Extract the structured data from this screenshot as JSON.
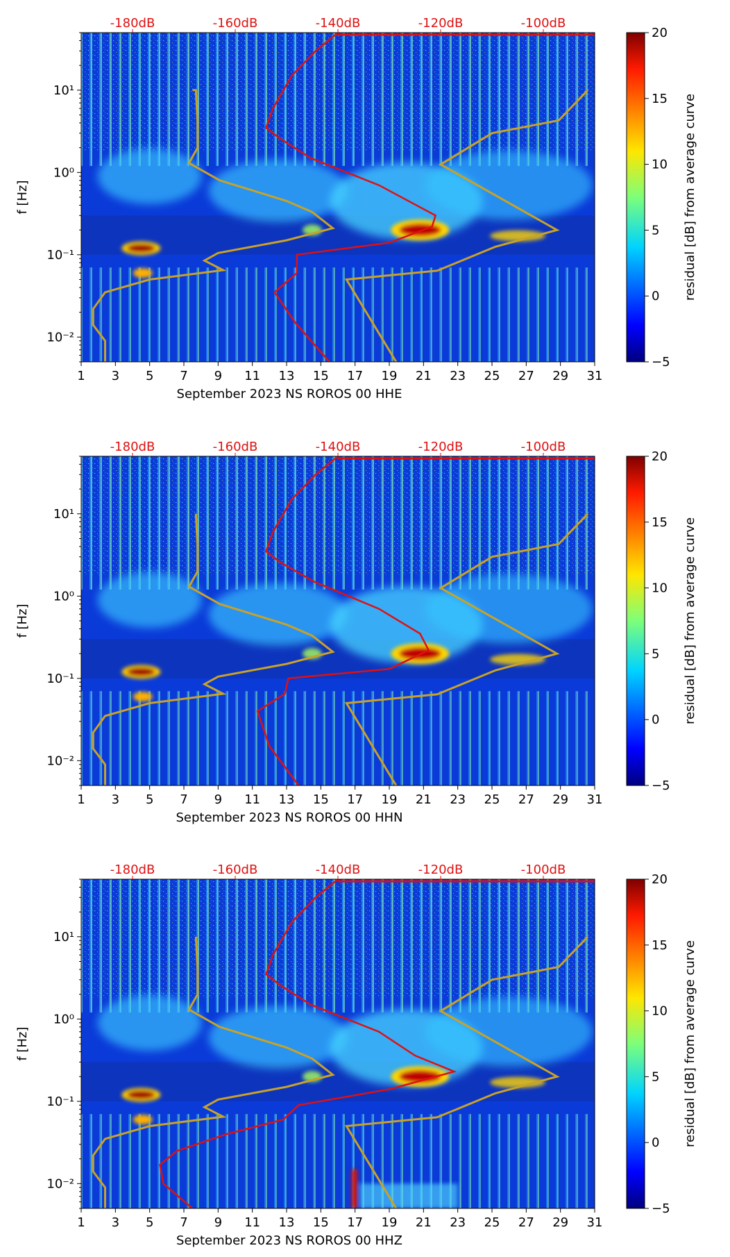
{
  "figure": {
    "colorbar_ticks": [
      "20",
      "15",
      "10",
      "5",
      "0",
      "−5"
    ],
    "colorbar_label": "residual [dB] from average curve",
    "colors": {
      "noise_model": "#c9a227",
      "median_psd": "#e01010",
      "top_axis_text": "#e01010"
    }
  },
  "chart_data": [
    {
      "type": "heatmap",
      "title": "",
      "xlabel": "September 2023 NS ROROS 00 HHE",
      "ylabel": "f [Hz]",
      "x_ticks": [
        "1",
        "3",
        "5",
        "7",
        "9",
        "11",
        "13",
        "15",
        "17",
        "19",
        "21",
        "23",
        "25",
        "27",
        "29",
        "31"
      ],
      "y_ticks": [
        "10¹",
        "10⁰",
        "10⁻¹",
        "10⁻²"
      ],
      "top_ticks": [
        "-180dB",
        "-160dB",
        "-140dB",
        "-120dB",
        "-100dB"
      ],
      "xlim": [
        1,
        31
      ],
      "ylim_hz": [
        0.005,
        50
      ],
      "top_range_db": [
        -190,
        -90
      ],
      "colorbar": {
        "min": -5,
        "max": 20,
        "label": "residual [dB] from average curve"
      },
      "noise_model_curve": [
        [
          2.4,
          0.005
        ],
        [
          2.4,
          0.009
        ],
        [
          1.7,
          0.014
        ],
        [
          1.7,
          0.022
        ],
        [
          2.4,
          0.035
        ],
        [
          5,
          0.05
        ],
        [
          9.3,
          0.065
        ],
        [
          8.2,
          0.085
        ],
        [
          9,
          0.105
        ],
        [
          13,
          0.15
        ],
        [
          15.7,
          0.21
        ],
        [
          14.5,
          0.33
        ],
        [
          13,
          0.45
        ],
        [
          9.1,
          0.8
        ],
        [
          7.3,
          1.3
        ],
        [
          7.8,
          2
        ],
        [
          7.8,
          4
        ],
        [
          7.7,
          10
        ],
        [
          7.7,
          10
        ],
        [
          7.6,
          10
        ],
        [
          7.6,
          10
        ],
        [
          7.6,
          10
        ],
        [
          7.5,
          10
        ],
        [
          7.5,
          10
        ]
      ],
      "noise_model_curve_right": [
        [
          19.4,
          0.005
        ],
        [
          16.5,
          0.05
        ],
        [
          21.8,
          0.064
        ],
        [
          25.2,
          0.125
        ],
        [
          28.8,
          0.2
        ],
        [
          22,
          1.25
        ],
        [
          25,
          3
        ],
        [
          28.9,
          4.3
        ],
        [
          30.6,
          10
        ]
      ],
      "median_psd_curve": [
        [
          15.5,
          0.005
        ],
        [
          13.5,
          0.015
        ],
        [
          12.3,
          0.035
        ],
        [
          13.6,
          0.06
        ],
        [
          13.6,
          0.1
        ],
        [
          19,
          0.14
        ],
        [
          21.5,
          0.22
        ],
        [
          21.7,
          0.3
        ],
        [
          18.4,
          0.7
        ],
        [
          14.4,
          1.5
        ],
        [
          12.6,
          2.6
        ],
        [
          11.8,
          3.5
        ],
        [
          12.2,
          6
        ],
        [
          13.3,
          15
        ],
        [
          14.7,
          30
        ],
        [
          16,
          50
        ]
      ]
    },
    {
      "type": "heatmap",
      "title": "",
      "xlabel": "September 2023 NS ROROS 00 HHN",
      "ylabel": "f [Hz]",
      "x_ticks": [
        "1",
        "3",
        "5",
        "7",
        "9",
        "11",
        "13",
        "15",
        "17",
        "19",
        "21",
        "23",
        "25",
        "27",
        "29",
        "31"
      ],
      "y_ticks": [
        "10¹",
        "10⁰",
        "10⁻¹",
        "10⁻²"
      ],
      "top_ticks": [
        "-180dB",
        "-160dB",
        "-140dB",
        "-120dB",
        "-100dB"
      ],
      "xlim": [
        1,
        31
      ],
      "ylim_hz": [
        0.005,
        50
      ],
      "top_range_db": [
        -190,
        -90
      ],
      "colorbar": {
        "min": -5,
        "max": 20,
        "label": "residual [dB] from average curve"
      },
      "noise_model_curve": [
        [
          2.4,
          0.005
        ],
        [
          2.4,
          0.009
        ],
        [
          1.7,
          0.014
        ],
        [
          1.7,
          0.022
        ],
        [
          2.4,
          0.035
        ],
        [
          5,
          0.05
        ],
        [
          9.3,
          0.065
        ],
        [
          8.2,
          0.085
        ],
        [
          9,
          0.105
        ],
        [
          13,
          0.15
        ],
        [
          15.7,
          0.21
        ],
        [
          14.5,
          0.33
        ],
        [
          13,
          0.45
        ],
        [
          9.1,
          0.8
        ],
        [
          7.3,
          1.3
        ],
        [
          7.8,
          2
        ],
        [
          7.8,
          4
        ],
        [
          7.7,
          10
        ]
      ],
      "noise_model_curve_right": [
        [
          19.4,
          0.005
        ],
        [
          16.5,
          0.05
        ],
        [
          21.8,
          0.064
        ],
        [
          25.2,
          0.125
        ],
        [
          28.8,
          0.2
        ],
        [
          22,
          1.25
        ],
        [
          25,
          3
        ],
        [
          28.9,
          4.3
        ],
        [
          30.6,
          10
        ]
      ],
      "median_psd_curve": [
        [
          13.7,
          0.005
        ],
        [
          12,
          0.015
        ],
        [
          11.3,
          0.04
        ],
        [
          12.9,
          0.065
        ],
        [
          13.1,
          0.1
        ],
        [
          19,
          0.13
        ],
        [
          21.3,
          0.22
        ],
        [
          20.8,
          0.35
        ],
        [
          18.4,
          0.7
        ],
        [
          14.6,
          1.5
        ],
        [
          12.6,
          2.6
        ],
        [
          11.8,
          3.5
        ],
        [
          12.2,
          6
        ],
        [
          13.3,
          15
        ],
        [
          14.7,
          30
        ],
        [
          16,
          50
        ]
      ]
    },
    {
      "type": "heatmap",
      "title": "",
      "xlabel": "September 2023 NS ROROS 00 HHZ",
      "ylabel": "f [Hz]",
      "x_ticks": [
        "1",
        "3",
        "5",
        "7",
        "9",
        "11",
        "13",
        "15",
        "17",
        "19",
        "21",
        "23",
        "25",
        "27",
        "29",
        "31"
      ],
      "y_ticks": [
        "10¹",
        "10⁰",
        "10⁻¹",
        "10⁻²"
      ],
      "top_ticks": [
        "-180dB",
        "-160dB",
        "-140dB",
        "-120dB",
        "-100dB"
      ],
      "xlim": [
        1,
        31
      ],
      "ylim_hz": [
        0.005,
        50
      ],
      "top_range_db": [
        -190,
        -90
      ],
      "colorbar": {
        "min": -5,
        "max": 20,
        "label": "residual [dB] from average curve"
      },
      "noise_model_curve": [
        [
          2.4,
          0.005
        ],
        [
          2.4,
          0.009
        ],
        [
          1.7,
          0.014
        ],
        [
          1.7,
          0.022
        ],
        [
          2.4,
          0.035
        ],
        [
          5,
          0.05
        ],
        [
          9.3,
          0.065
        ],
        [
          8.2,
          0.085
        ],
        [
          9,
          0.105
        ],
        [
          13,
          0.15
        ],
        [
          15.7,
          0.21
        ],
        [
          14.5,
          0.33
        ],
        [
          13,
          0.45
        ],
        [
          9.1,
          0.8
        ],
        [
          7.3,
          1.3
        ],
        [
          7.8,
          2
        ],
        [
          7.8,
          4
        ],
        [
          7.7,
          10
        ]
      ],
      "noise_model_curve_right": [
        [
          19.4,
          0.005
        ],
        [
          16.5,
          0.05
        ],
        [
          21.8,
          0.064
        ],
        [
          25.2,
          0.125
        ],
        [
          28.8,
          0.2
        ],
        [
          22,
          1.25
        ],
        [
          25,
          3
        ],
        [
          28.9,
          4.3
        ],
        [
          30.6,
          10
        ]
      ],
      "median_psd_curve": [
        [
          7.5,
          0.005
        ],
        [
          5.8,
          0.01
        ],
        [
          5.6,
          0.017
        ],
        [
          6.6,
          0.025
        ],
        [
          9.5,
          0.04
        ],
        [
          12.8,
          0.06
        ],
        [
          13.7,
          0.09
        ],
        [
          19,
          0.14
        ],
        [
          22.8,
          0.23
        ],
        [
          20.5,
          0.36
        ],
        [
          18.4,
          0.7
        ],
        [
          14.4,
          1.5
        ],
        [
          12.6,
          2.6
        ],
        [
          11.8,
          3.5
        ],
        [
          12.2,
          6
        ],
        [
          13.3,
          15
        ],
        [
          14.7,
          30
        ],
        [
          16,
          50
        ]
      ]
    }
  ]
}
